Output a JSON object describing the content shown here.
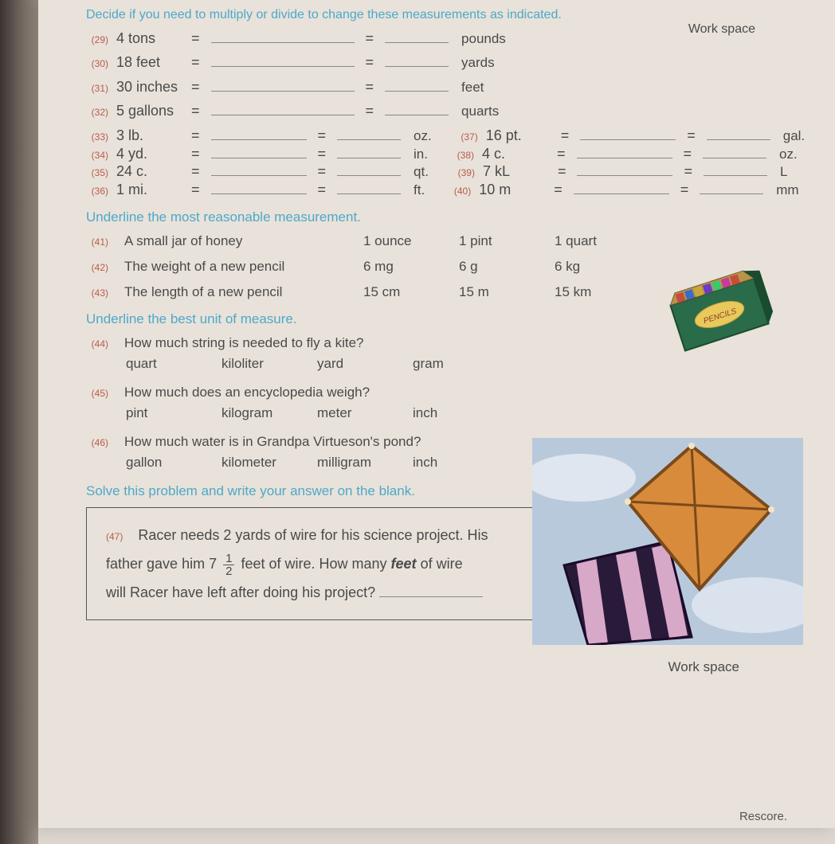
{
  "header": {
    "instr": "Decide if you need to multiply or divide to change these measurements as indicated.",
    "workspace": "Work space"
  },
  "conversions": [
    {
      "n": "(29)",
      "given": "4 tons",
      "unit": "pounds",
      "mode": "long"
    },
    {
      "n": "(30)",
      "given": "18 feet",
      "unit": "yards",
      "mode": "long"
    },
    {
      "n": "(31)",
      "given": "30 inches",
      "unit": "feet",
      "mode": "long"
    },
    {
      "n": "(32)",
      "given": "5 gallons",
      "unit": "quarts",
      "mode": "long"
    }
  ],
  "pairs": [
    {
      "l": {
        "n": "(33)",
        "given": "3 lb.",
        "unit": "oz."
      },
      "r": {
        "n": "(37)",
        "given": "16 pt.",
        "unit": "gal."
      }
    },
    {
      "l": {
        "n": "(34)",
        "given": "4 yd.",
        "unit": "in."
      },
      "r": {
        "n": "(38)",
        "given": "4 c.",
        "unit": "oz."
      }
    },
    {
      "l": {
        "n": "(35)",
        "given": "24 c.",
        "unit": "qt."
      },
      "r": {
        "n": "(39)",
        "given": "7 kL",
        "unit": "L"
      }
    },
    {
      "l": {
        "n": "(36)",
        "given": "1 mi.",
        "unit": "ft."
      },
      "r": {
        "n": "(40)",
        "given": "10 m",
        "unit": "mm"
      }
    }
  ],
  "section2": {
    "instr": "Underline the most reasonable measurement.",
    "rows": [
      {
        "n": "(41)",
        "prompt": "A small jar of honey",
        "opts": [
          "1 ounce",
          "1 pint",
          "1 quart"
        ]
      },
      {
        "n": "(42)",
        "prompt": "The weight of a new pencil",
        "opts": [
          "6 mg",
          "6 g",
          "6 kg"
        ]
      },
      {
        "n": "(43)",
        "prompt": "The length of a new pencil",
        "opts": [
          "15 cm",
          "15 m",
          "15 km"
        ]
      }
    ]
  },
  "section3": {
    "instr": "Underline the best unit of measure.",
    "rows": [
      {
        "n": "(44)",
        "prompt": "How much string is needed to fly a kite?",
        "opts": [
          "quart",
          "kiloliter",
          "yard",
          "gram"
        ]
      },
      {
        "n": "(45)",
        "prompt": "How much does an encyclopedia weigh?",
        "opts": [
          "pint",
          "kilogram",
          "meter",
          "inch"
        ]
      },
      {
        "n": "(46)",
        "prompt": "How much water is in Grandpa Virtueson's pond?",
        "opts": [
          "gallon",
          "kilometer",
          "milligram",
          "inch"
        ]
      }
    ]
  },
  "section4": {
    "instr": "Solve this problem and write your answer on the blank.",
    "workspace": "Work space",
    "n": "(47)",
    "text1": "Racer needs 2 yards of wire for his science project. His",
    "text2a": "father gave him 7",
    "frac_n": "1",
    "frac_d": "2",
    "text2b": " feet of wire. How many ",
    "feet": "feet",
    "text2c": " of wire",
    "text3": "will Racer have left after doing his project?"
  },
  "rescore": "Rescore.",
  "pencils": {
    "label": "PENCILS",
    "body": "#2a6b4a",
    "top": "#b8944a",
    "pencil_colors": [
      "#c94b3a",
      "#3a6bc9",
      "#c9a83a",
      "#6b3ac9",
      "#3ac96b",
      "#c93a9a"
    ]
  },
  "kite": {
    "sky": "#b9c9dc",
    "kite1": "#d88b3a",
    "kite1_border": "#7a4a1a",
    "kite2a": "#2a1a3a",
    "kite2b": "#d8a8c9"
  }
}
